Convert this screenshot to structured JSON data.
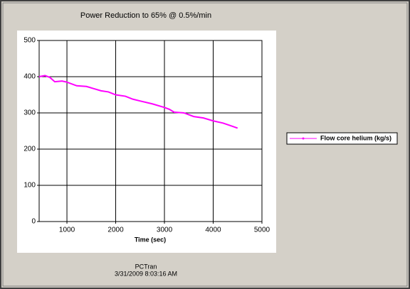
{
  "chart_data": {
    "type": "line",
    "title": "Power Reduction to 65% @ 0.5%/min",
    "xlabel": "Time (sec)",
    "footer": [
      "PCTran",
      "3/31/2009 8:03:16 AM"
    ],
    "x": [
      430,
      550,
      650,
      750,
      900,
      1000,
      1200,
      1400,
      1550,
      1700,
      1850,
      2000,
      2200,
      2350,
      2500,
      2750,
      3000,
      3100,
      3200,
      3400,
      3600,
      3800,
      4000,
      4200,
      4350,
      4500
    ],
    "series": [
      {
        "name": "Flow core helium (kg/s)",
        "color": "#ff00ff",
        "values": [
          400,
          403,
          398,
          386,
          388,
          385,
          375,
          373,
          367,
          361,
          358,
          350,
          346,
          338,
          333,
          325,
          315,
          310,
          302,
          300,
          290,
          286,
          278,
          272,
          265,
          258
        ]
      }
    ],
    "xlim": [
      430,
      5000
    ],
    "xticks": [
      1000,
      2000,
      3000,
      4000,
      5000
    ],
    "ylim": [
      0,
      500
    ],
    "yticks": [
      0,
      100,
      200,
      300,
      400,
      500
    ],
    "grid": true,
    "legend": "right"
  }
}
